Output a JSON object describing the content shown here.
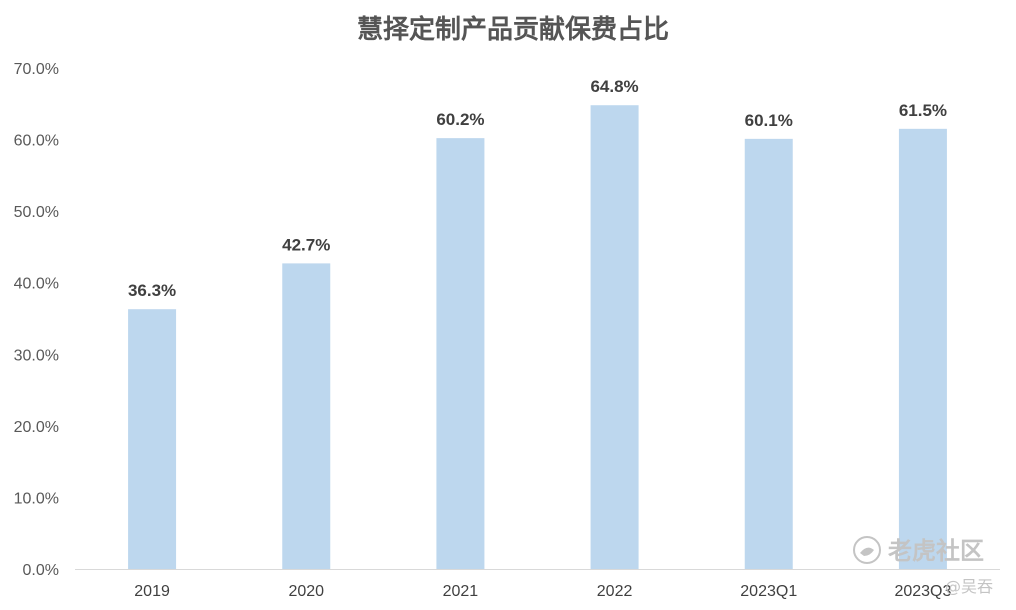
{
  "chart_data": {
    "type": "bar",
    "title": "慧择定制产品贡献保费占比",
    "xlabel": "",
    "ylabel": "",
    "categories": [
      "2019",
      "2020",
      "2021",
      "2022",
      "2023Q1",
      "2023Q3"
    ],
    "values": [
      36.3,
      42.7,
      60.2,
      64.8,
      60.1,
      61.5
    ],
    "data_labels": [
      "36.3%",
      "42.7%",
      "60.2%",
      "64.8%",
      "60.1%",
      "61.5%"
    ],
    "ylim": [
      0,
      70
    ],
    "yticks": [
      0,
      10,
      20,
      30,
      40,
      50,
      60,
      70
    ],
    "ytick_labels": [
      "0.0%",
      "10.0%",
      "20.0%",
      "30.0%",
      "40.0%",
      "50.0%",
      "60.0%",
      "70.0%"
    ],
    "grid": false,
    "legend": "none",
    "bar_color": "#bdd7ee"
  },
  "watermark": {
    "brand": "老虎社区",
    "author": "@吴吞",
    "icon": "tiger-logo-icon"
  }
}
